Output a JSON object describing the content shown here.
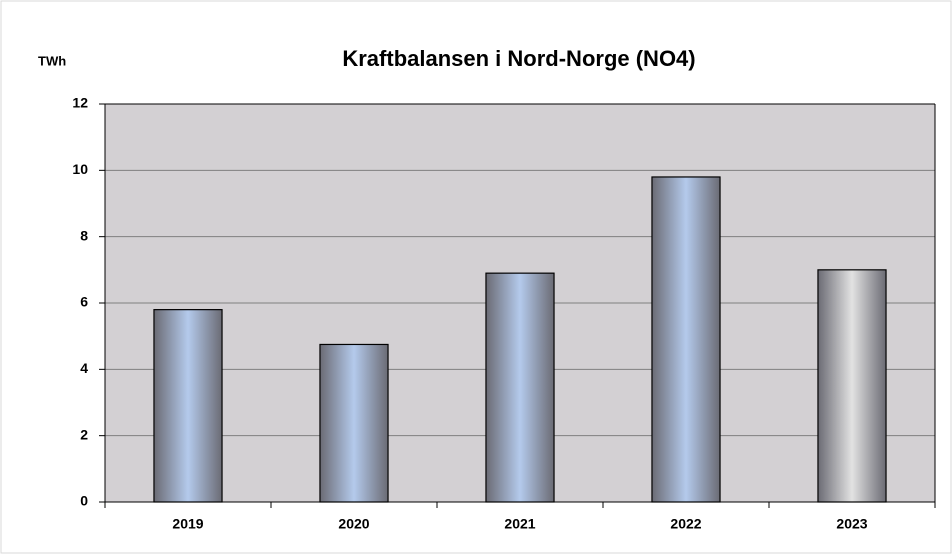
{
  "chart_data": {
    "type": "bar",
    "title": "Kraftbalansen i Nord-Norge  (NO4)",
    "y_unit": "TWh",
    "categories": [
      "2019",
      "2020",
      "2021",
      "2022",
      "2023"
    ],
    "values": [
      5.8,
      4.75,
      6.9,
      9.8,
      7.0
    ],
    "colors": [
      "#b4caec",
      "#b4caec",
      "#b4caec",
      "#b4caec",
      "#e2e2e2"
    ],
    "ylim": [
      0,
      12
    ],
    "yticks": [
      0,
      2,
      4,
      6,
      8,
      10,
      12
    ],
    "grid": true
  }
}
